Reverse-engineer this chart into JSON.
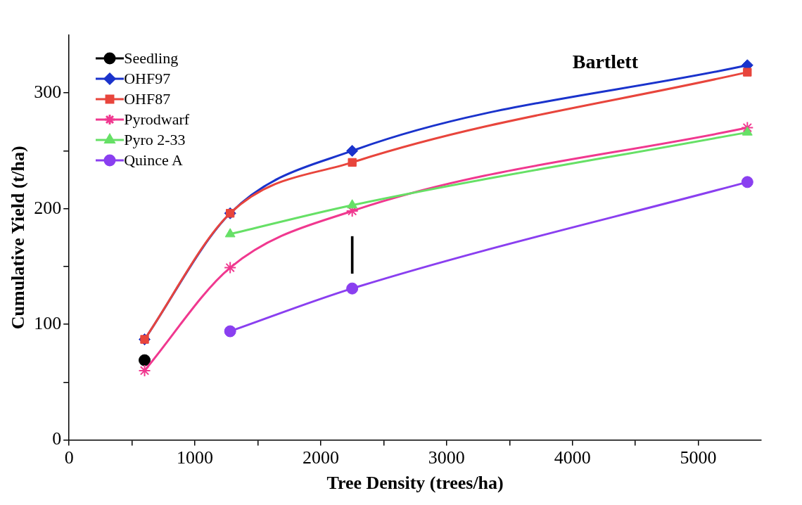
{
  "chart_data": {
    "type": "line",
    "title": "Bartlett",
    "xlabel": "Tree Density (trees/ha)",
    "ylabel": "Cumulative Yield (t/ha)",
    "xlim": [
      0,
      5500
    ],
    "xticks": [
      0,
      {
        "value": 500,
        "label": null
      },
      1000,
      {
        "value": 1500,
        "label": null
      },
      2000,
      {
        "value": 2500,
        "label": null
      },
      3000,
      {
        "value": 3500,
        "label": null
      },
      4000,
      {
        "value": 4500,
        "label": null
      },
      5000
    ],
    "ylim": [
      0,
      350
    ],
    "yticks": [
      0,
      {
        "value": 50,
        "label": null
      },
      100,
      {
        "value": 150,
        "label": null
      },
      200,
      {
        "value": 250,
        "label": null
      },
      300
    ],
    "grid": false,
    "legend": "top left",
    "series": [
      {
        "name": "Seedling",
        "color": "#000000",
        "marker": "circle",
        "x": [
          600
        ],
        "values": [
          69
        ]
      },
      {
        "name": "OHF97",
        "color": "#1a33cc",
        "marker": "diamond",
        "x": [
          600,
          1280,
          2250,
          5390
        ],
        "values": [
          87,
          196,
          250,
          324
        ]
      },
      {
        "name": "OHF87",
        "color": "#e8453c",
        "marker": "square",
        "x": [
          600,
          1280,
          2250,
          5390
        ],
        "values": [
          87,
          196,
          240,
          318
        ]
      },
      {
        "name": "Pyrodwarf",
        "color": "#f0388f",
        "marker": "cross",
        "x": [
          600,
          1280,
          2250,
          5390
        ],
        "values": [
          60,
          149,
          198,
          270
        ]
      },
      {
        "name": "Pyro 2-33",
        "color": "#66e066",
        "marker": "triangle",
        "x": [
          1280,
          2250,
          5390
        ],
        "values": [
          178,
          203,
          266
        ]
      },
      {
        "name": "Quince A",
        "color": "#8a3ff0",
        "marker": "circle",
        "x": [
          1280,
          2250,
          5390
        ],
        "values": [
          94,
          131,
          223
        ]
      },
      {
        "type": "bar",
        "color": "#000000",
        "x": [
          2250
        ],
        "base": [
          144
        ],
        "values": [
          32
        ]
      }
    ]
  }
}
